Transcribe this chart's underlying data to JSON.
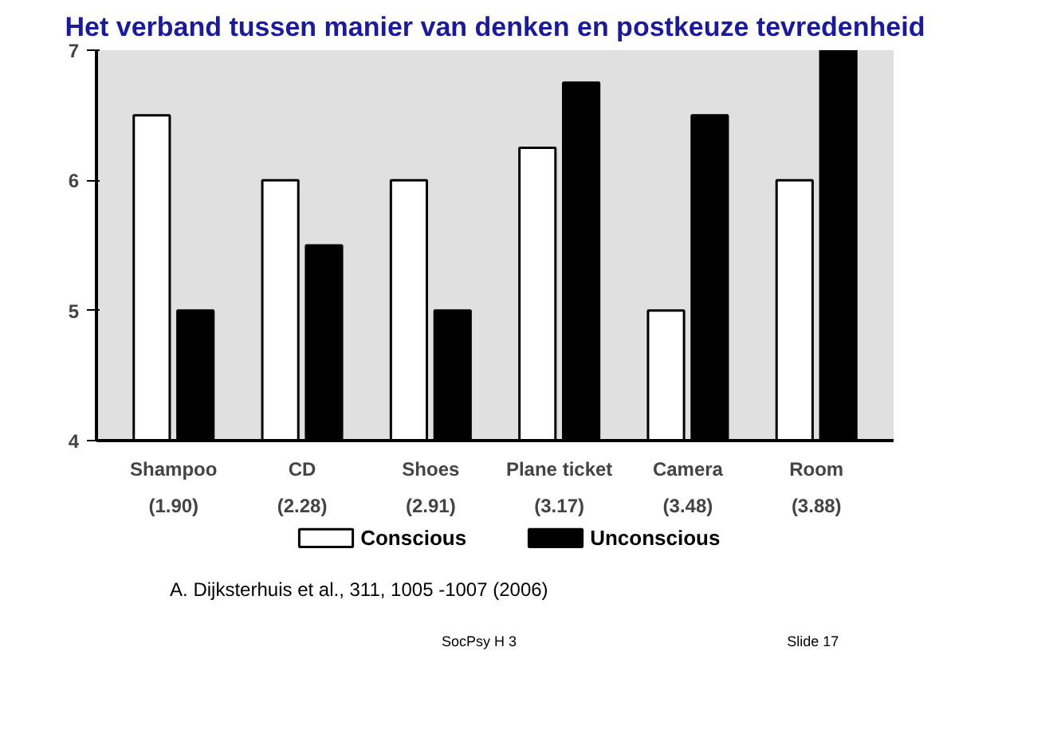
{
  "chart_data": {
    "type": "bar",
    "title": "Het verband tussen manier van denken en postkeuze tevredenheid",
    "categories": [
      "Shampoo\n(1.90)",
      "CD\n(2.28)",
      "Shoes\n(2.91)",
      "Plane ticket\n(3.17)",
      "Camera\n(3.48)",
      "Room\n(3.88)"
    ],
    "series": [
      {
        "name": "Conscious",
        "color": "#ffffff",
        "values": [
          6.5,
          6,
          6,
          6.25,
          5,
          6
        ]
      },
      {
        "name": "Unconscious",
        "color": "#000000",
        "values": [
          5,
          5.5,
          5,
          6.75,
          6.5,
          7
        ]
      }
    ],
    "ylim": [
      4,
      7
    ],
    "yticks": [
      4,
      5,
      6,
      7
    ],
    "legend": "bottom",
    "annotations": [
      "A.  Dijksterhuis et al.,  311, 1005 -1007 (2006)",
      "SocPsy H 3",
      "Slide 17"
    ]
  }
}
